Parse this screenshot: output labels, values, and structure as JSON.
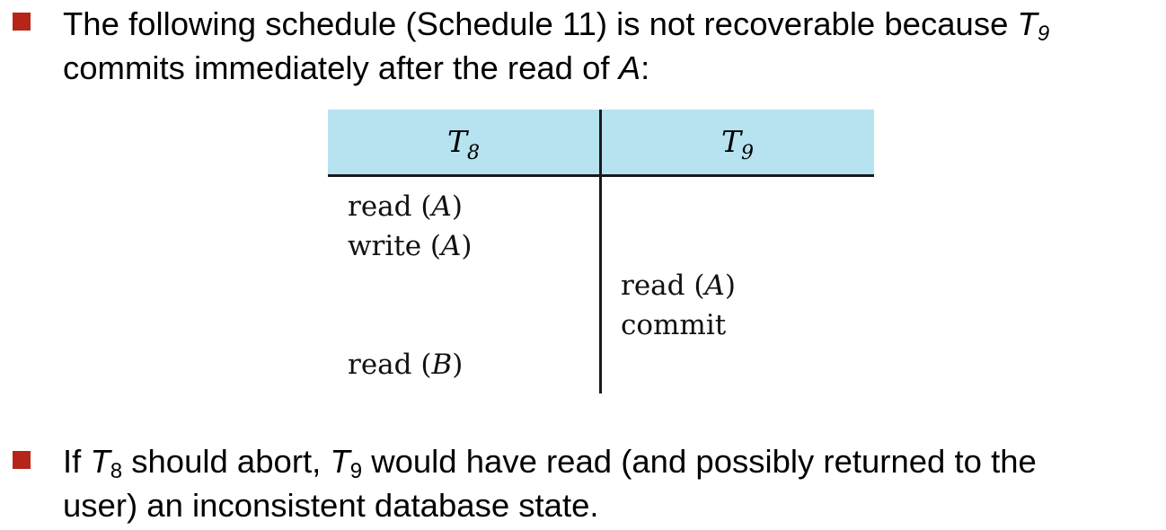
{
  "colors": {
    "bullet": "#b52619",
    "header_background": "#b7e2ef",
    "rule": "#1a1a1a"
  },
  "bullet1": {
    "line1_text": "The following schedule (Schedule 11) is not recoverable because ",
    "line1_txn": "T",
    "line1_txn_sub": "9",
    "line2_text": "commits immediately after the read of ",
    "line2_item": "A",
    "line2_end": ":"
  },
  "schedule": {
    "headers": [
      {
        "name": "T",
        "sub": "8"
      },
      {
        "name": "T",
        "sub": "9"
      }
    ],
    "ops": [
      {
        "op": "read",
        "arg": "A",
        "column": "T8"
      },
      {
        "op": "write",
        "arg": "A",
        "column": "T8"
      },
      {
        "op": "read",
        "arg": "A",
        "column": "T9"
      },
      {
        "op": "commit",
        "arg": null,
        "column": "T9"
      },
      {
        "op": "read",
        "arg": "B",
        "column": "T8"
      }
    ]
  },
  "bullet2": {
    "if": "If ",
    "t8": "T",
    "t8_sub": "8",
    "mid": " should abort, ",
    "t9": "T",
    "t9_sub": "9",
    "line1_rest": " would have read (and possibly returned to the",
    "line2": "user) an inconsistent database state."
  }
}
